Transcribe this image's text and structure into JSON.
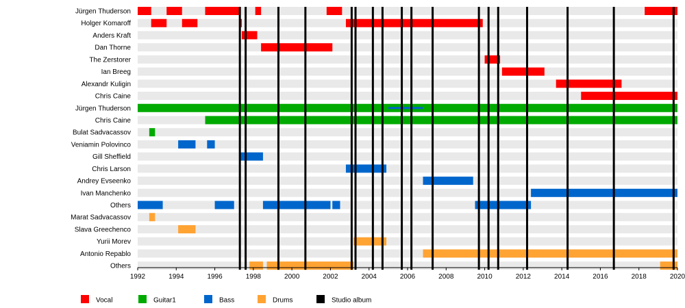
{
  "chart_data": {
    "type": "timeline",
    "xlim": [
      1992,
      2020
    ],
    "x_ticks": [
      "1992",
      "1994",
      "1996",
      "1998",
      "2000",
      "2002",
      "2004",
      "2006",
      "2008",
      "2010",
      "2012",
      "2014",
      "2016",
      "2018",
      "2020"
    ],
    "colors": {
      "Vocal": "#ff0000",
      "Guitar1": "#00aa00",
      "Bass": "#0066cc",
      "Drums": "#ffa333",
      "Studio album": "#000000",
      "track": "#e9e9e9"
    },
    "members": [
      {
        "name": "Jürgen Thuderson",
        "role": "Vocal",
        "periods": [
          [
            1992.0,
            1992.7
          ],
          [
            1993.5,
            1994.3
          ],
          [
            1995.5,
            1997.3
          ],
          [
            1998.1,
            1998.4
          ],
          [
            2001.8,
            2002.6
          ],
          [
            2018.3,
            2020.0
          ]
        ]
      },
      {
        "name": "Holger Komaroff",
        "role": "Vocal",
        "periods": [
          [
            1992.7,
            1993.5
          ],
          [
            1994.3,
            1995.1
          ],
          [
            1997.3,
            1997.4
          ],
          [
            2002.8,
            2009.9
          ]
        ]
      },
      {
        "name": "Anders Kraft",
        "role": "Vocal",
        "periods": [
          [
            1997.4,
            1998.2
          ]
        ]
      },
      {
        "name": "Dan Thorne",
        "role": "Vocal",
        "periods": [
          [
            1998.4,
            2002.1
          ]
        ]
      },
      {
        "name": "The Zerstorer",
        "role": "Vocal",
        "periods": [
          [
            2010.0,
            2010.8
          ]
        ]
      },
      {
        "name": "Ian Breeg",
        "role": "Vocal",
        "periods": [
          [
            2010.9,
            2013.1
          ]
        ]
      },
      {
        "name": "Alexandr Kuligin",
        "role": "Vocal",
        "periods": [
          [
            2013.7,
            2017.1
          ]
        ]
      },
      {
        "name": "Chris Caine",
        "role": "Vocal",
        "periods": [
          [
            2015.0,
            2020.0
          ]
        ]
      },
      {
        "name": "Jürgen Thuderson",
        "role": "Guitar1",
        "periods": [
          [
            1992.0,
            2020.0
          ]
        ],
        "overlay": {
          "role": "Bass",
          "period": [
            2005.0,
            2006.8
          ]
        }
      },
      {
        "name": "Chris Caine",
        "role": "Guitar1",
        "periods": [
          [
            1995.5,
            2020.0
          ]
        ]
      },
      {
        "name": "Bulat Sadvacassov",
        "role": "Guitar1",
        "periods": [
          [
            1992.6,
            1992.9
          ]
        ]
      },
      {
        "name": "Veniamin Polovinco",
        "role": "Bass",
        "periods": [
          [
            1994.1,
            1995.0
          ],
          [
            1995.6,
            1996.0
          ]
        ]
      },
      {
        "name": "Gill Sheffield",
        "role": "Bass",
        "periods": [
          [
            1997.3,
            1998.5
          ]
        ]
      },
      {
        "name": "Chris Larson",
        "role": "Bass",
        "periods": [
          [
            2002.8,
            2004.9
          ]
        ]
      },
      {
        "name": "Andrey Evseenko",
        "role": "Bass",
        "periods": [
          [
            2006.8,
            2009.4
          ]
        ]
      },
      {
        "name": "Ivan Manchenko",
        "role": "Bass",
        "periods": [
          [
            2012.4,
            2020.0
          ]
        ]
      },
      {
        "name": "Others",
        "role": "Bass",
        "periods": [
          [
            1992.0,
            1993.3
          ],
          [
            1996.0,
            1997.0
          ],
          [
            1998.5,
            2002.0
          ],
          [
            2002.1,
            2002.5
          ],
          [
            2009.5,
            2012.4
          ]
        ]
      },
      {
        "name": "Marat Sadvacassov",
        "role": "Drums",
        "periods": [
          [
            1992.6,
            1992.9
          ]
        ]
      },
      {
        "name": "Slava Greechenco",
        "role": "Drums",
        "periods": [
          [
            1994.1,
            1995.0
          ]
        ]
      },
      {
        "name": "Yurii Morev",
        "role": "Drums",
        "periods": [
          [
            2003.2,
            2004.9
          ]
        ]
      },
      {
        "name": "Antonio Repablo",
        "role": "Drums",
        "periods": [
          [
            2006.8,
            2020.0
          ]
        ]
      },
      {
        "name": "Others",
        "role": "Drums",
        "periods": [
          [
            1997.8,
            1998.5
          ],
          [
            1998.7,
            2003.2
          ],
          [
            2019.1,
            2020.0
          ]
        ]
      }
    ],
    "studio_albums": [
      1997.3,
      1997.6,
      1999.3,
      2000.7,
      2003.1,
      2003.3,
      2004.2,
      2004.7,
      2005.7,
      2006.2,
      2007.3,
      2009.7,
      2010.2,
      2010.7,
      2012.2,
      2014.3,
      2016.7,
      2019.8
    ],
    "legend": [
      {
        "label": "Vocal",
        "role": "Vocal"
      },
      {
        "label": "Guitar1",
        "role": "Guitar1"
      },
      {
        "label": "Bass",
        "role": "Bass"
      },
      {
        "label": "Drums",
        "role": "Drums"
      },
      {
        "label": "Studio album",
        "role": "Studio album"
      }
    ],
    "grid": false,
    "legend_position": "bottom"
  }
}
